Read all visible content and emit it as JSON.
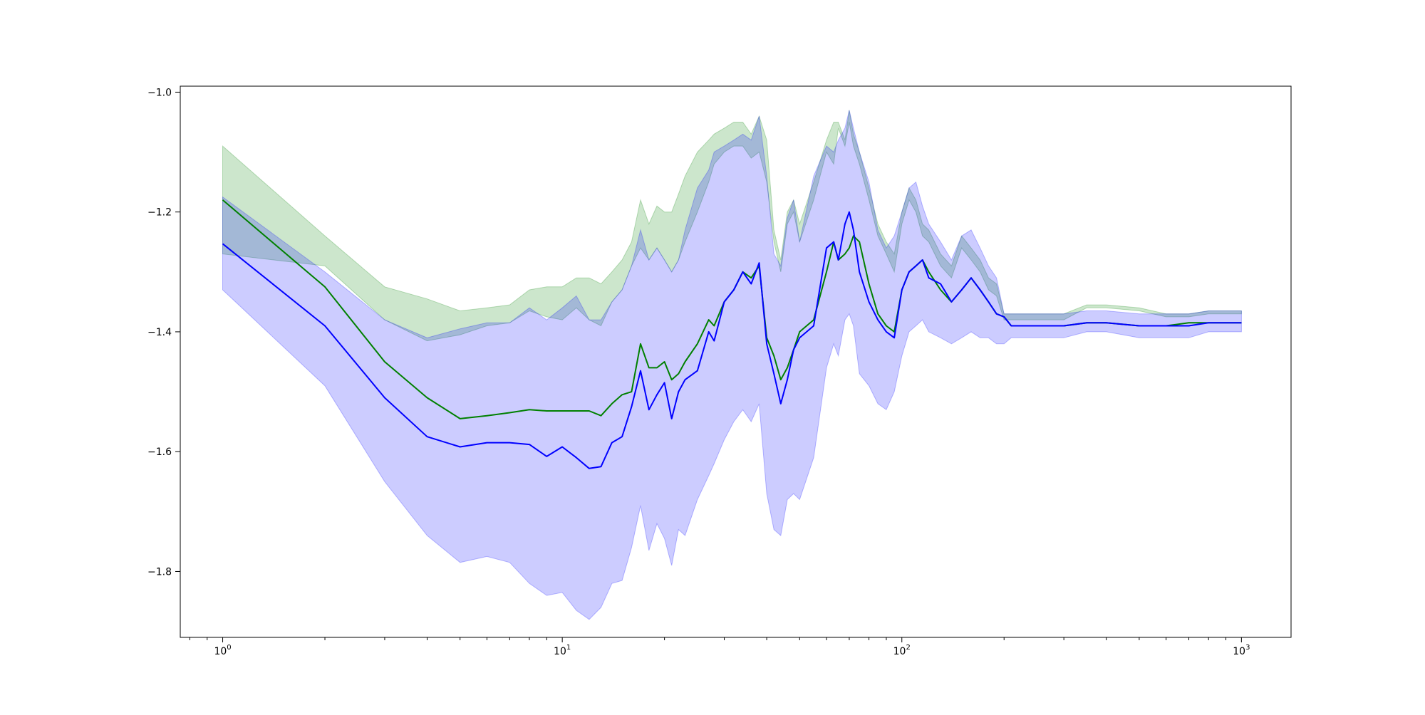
{
  "chart_data": {
    "type": "line",
    "title": "",
    "xlabel": "",
    "ylabel": "",
    "xscale": "log",
    "xlim": [
      0.75,
      1400
    ],
    "ylim": [
      -1.91,
      -0.99
    ],
    "grid": false,
    "legend": "none",
    "x_ticks": [
      {
        "base": "10",
        "exp": "0",
        "value": 1
      },
      {
        "base": "10",
        "exp": "1",
        "value": 10
      },
      {
        "base": "10",
        "exp": "2",
        "value": 100
      },
      {
        "base": "10",
        "exp": "3",
        "value": 1000
      }
    ],
    "y_ticks": [
      {
        "label": "−1.0",
        "value": -1.0
      },
      {
        "label": "−1.2",
        "value": -1.2
      },
      {
        "label": "−1.4",
        "value": -1.4
      },
      {
        "label": "−1.6",
        "value": -1.6
      },
      {
        "label": "−1.8",
        "value": -1.8
      }
    ],
    "series": [
      {
        "color": "#008000",
        "band_color": "#008000",
        "band_opacity": 0.2,
        "x": [
          1,
          2,
          3,
          4,
          5,
          6,
          7,
          8,
          9,
          10,
          11,
          12,
          13,
          14,
          15,
          16,
          17,
          18,
          19,
          20,
          21,
          22,
          23,
          25,
          27,
          28,
          30,
          32,
          34,
          36,
          38,
          40,
          42,
          44,
          46,
          48,
          50,
          55,
          60,
          63,
          65,
          68,
          70,
          72,
          75,
          80,
          85,
          90,
          95,
          100,
          105,
          110,
          115,
          120,
          130,
          140,
          150,
          160,
          170,
          180,
          190,
          200,
          210,
          250,
          300,
          350,
          400,
          500,
          600,
          700,
          800,
          1000
        ],
        "y": [
          -1.18,
          -1.325,
          -1.45,
          -1.51,
          -1.545,
          -1.54,
          -1.535,
          -1.53,
          -1.532,
          -1.532,
          -1.532,
          -1.532,
          -1.54,
          -1.52,
          -1.505,
          -1.5,
          -1.42,
          -1.46,
          -1.46,
          -1.45,
          -1.48,
          -1.47,
          -1.45,
          -1.42,
          -1.38,
          -1.39,
          -1.35,
          -1.33,
          -1.3,
          -1.31,
          -1.29,
          -1.41,
          -1.44,
          -1.48,
          -1.46,
          -1.43,
          -1.4,
          -1.38,
          -1.3,
          -1.25,
          -1.28,
          -1.27,
          -1.26,
          -1.24,
          -1.25,
          -1.32,
          -1.37,
          -1.39,
          -1.4,
          -1.33,
          -1.3,
          -1.29,
          -1.28,
          -1.3,
          -1.33,
          -1.35,
          -1.33,
          -1.31,
          -1.33,
          -1.35,
          -1.37,
          -1.375,
          -1.39,
          -1.39,
          -1.39,
          -1.385,
          -1.385,
          -1.39,
          -1.39,
          -1.385,
          -1.385,
          -1.385
        ],
        "lower": [
          -1.27,
          -1.29,
          -1.38,
          -1.415,
          -1.405,
          -1.39,
          -1.385,
          -1.365,
          -1.375,
          -1.38,
          -1.36,
          -1.38,
          -1.39,
          -1.35,
          -1.33,
          -1.29,
          -1.26,
          -1.28,
          -1.26,
          -1.28,
          -1.3,
          -1.28,
          -1.25,
          -1.2,
          -1.15,
          -1.12,
          -1.1,
          -1.09,
          -1.09,
          -1.11,
          -1.1,
          -1.15,
          -1.25,
          -1.3,
          -1.22,
          -1.2,
          -1.25,
          -1.18,
          -1.1,
          -1.12,
          -1.06,
          -1.09,
          -1.05,
          -1.09,
          -1.12,
          -1.18,
          -1.24,
          -1.27,
          -1.3,
          -1.22,
          -1.18,
          -1.2,
          -1.24,
          -1.25,
          -1.29,
          -1.31,
          -1.26,
          -1.28,
          -1.3,
          -1.33,
          -1.34,
          -1.38,
          -1.38,
          -1.38,
          -1.38,
          -1.36,
          -1.36,
          -1.365,
          -1.375,
          -1.375,
          -1.37,
          -1.37
        ],
        "upper": [
          -1.09,
          -1.24,
          -1.325,
          -1.345,
          -1.365,
          -1.36,
          -1.355,
          -1.33,
          -1.325,
          -1.325,
          -1.31,
          -1.31,
          -1.32,
          -1.3,
          -1.28,
          -1.25,
          -1.18,
          -1.22,
          -1.19,
          -1.2,
          -1.2,
          -1.17,
          -1.14,
          -1.1,
          -1.08,
          -1.07,
          -1.06,
          -1.05,
          -1.05,
          -1.07,
          -1.04,
          -1.08,
          -1.23,
          -1.28,
          -1.2,
          -1.18,
          -1.22,
          -1.15,
          -1.08,
          -1.05,
          -1.05,
          -1.08,
          -1.03,
          -1.07,
          -1.1,
          -1.16,
          -1.22,
          -1.25,
          -1.27,
          -1.2,
          -1.16,
          -1.18,
          -1.22,
          -1.23,
          -1.27,
          -1.29,
          -1.24,
          -1.26,
          -1.28,
          -1.31,
          -1.32,
          -1.37,
          -1.37,
          -1.37,
          -1.37,
          -1.355,
          -1.355,
          -1.36,
          -1.37,
          -1.37,
          -1.365,
          -1.365
        ]
      },
      {
        "color": "#0000ff",
        "band_color": "#0000ff",
        "band_opacity": 0.2,
        "x": [
          1,
          2,
          3,
          4,
          5,
          6,
          7,
          8,
          9,
          10,
          11,
          12,
          13,
          14,
          15,
          16,
          17,
          18,
          19,
          20,
          21,
          22,
          23,
          25,
          27,
          28,
          30,
          32,
          34,
          36,
          38,
          40,
          42,
          44,
          46,
          48,
          50,
          55,
          60,
          63,
          65,
          68,
          70,
          72,
          75,
          80,
          85,
          90,
          95,
          100,
          105,
          110,
          115,
          120,
          130,
          140,
          150,
          160,
          170,
          180,
          190,
          200,
          210,
          250,
          300,
          350,
          400,
          500,
          600,
          700,
          800,
          1000
        ],
        "y": [
          -1.253,
          -1.39,
          -1.51,
          -1.575,
          -1.592,
          -1.585,
          -1.585,
          -1.588,
          -1.608,
          -1.592,
          -1.61,
          -1.628,
          -1.625,
          -1.585,
          -1.575,
          -1.525,
          -1.465,
          -1.53,
          -1.505,
          -1.485,
          -1.545,
          -1.5,
          -1.48,
          -1.465,
          -1.4,
          -1.415,
          -1.35,
          -1.33,
          -1.3,
          -1.32,
          -1.285,
          -1.42,
          -1.47,
          -1.52,
          -1.48,
          -1.43,
          -1.41,
          -1.39,
          -1.26,
          -1.25,
          -1.28,
          -1.22,
          -1.2,
          -1.23,
          -1.3,
          -1.35,
          -1.38,
          -1.4,
          -1.41,
          -1.33,
          -1.3,
          -1.29,
          -1.28,
          -1.31,
          -1.32,
          -1.35,
          -1.33,
          -1.31,
          -1.33,
          -1.35,
          -1.37,
          -1.375,
          -1.39,
          -1.39,
          -1.39,
          -1.385,
          -1.385,
          -1.39,
          -1.39,
          -1.39,
          -1.385,
          -1.385
        ],
        "lower": [
          -1.33,
          -1.49,
          -1.65,
          -1.74,
          -1.785,
          -1.775,
          -1.785,
          -1.82,
          -1.84,
          -1.835,
          -1.865,
          -1.88,
          -1.86,
          -1.82,
          -1.815,
          -1.76,
          -1.69,
          -1.765,
          -1.72,
          -1.745,
          -1.79,
          -1.73,
          -1.74,
          -1.68,
          -1.64,
          -1.62,
          -1.58,
          -1.55,
          -1.53,
          -1.55,
          -1.52,
          -1.67,
          -1.73,
          -1.74,
          -1.68,
          -1.67,
          -1.68,
          -1.61,
          -1.46,
          -1.42,
          -1.44,
          -1.38,
          -1.37,
          -1.39,
          -1.47,
          -1.49,
          -1.52,
          -1.53,
          -1.5,
          -1.44,
          -1.4,
          -1.39,
          -1.38,
          -1.4,
          -1.41,
          -1.42,
          -1.41,
          -1.4,
          -1.41,
          -1.41,
          -1.42,
          -1.42,
          -1.41,
          -1.41,
          -1.41,
          -1.4,
          -1.4,
          -1.41,
          -1.41,
          -1.41,
          -1.4,
          -1.4
        ],
        "upper": [
          -1.175,
          -1.3,
          -1.38,
          -1.41,
          -1.395,
          -1.385,
          -1.385,
          -1.36,
          -1.38,
          -1.36,
          -1.34,
          -1.38,
          -1.38,
          -1.35,
          -1.33,
          -1.29,
          -1.23,
          -1.28,
          -1.26,
          -1.28,
          -1.3,
          -1.28,
          -1.23,
          -1.16,
          -1.13,
          -1.1,
          -1.09,
          -1.08,
          -1.07,
          -1.08,
          -1.04,
          -1.14,
          -1.27,
          -1.29,
          -1.21,
          -1.18,
          -1.25,
          -1.14,
          -1.09,
          -1.1,
          -1.08,
          -1.06,
          -1.03,
          -1.06,
          -1.1,
          -1.15,
          -1.23,
          -1.26,
          -1.24,
          -1.2,
          -1.16,
          -1.15,
          -1.19,
          -1.22,
          -1.25,
          -1.28,
          -1.24,
          -1.23,
          -1.26,
          -1.29,
          -1.31,
          -1.37,
          -1.37,
          -1.37,
          -1.37,
          -1.365,
          -1.365,
          -1.37,
          -1.37,
          -1.37,
          -1.365,
          -1.365
        ]
      }
    ]
  }
}
